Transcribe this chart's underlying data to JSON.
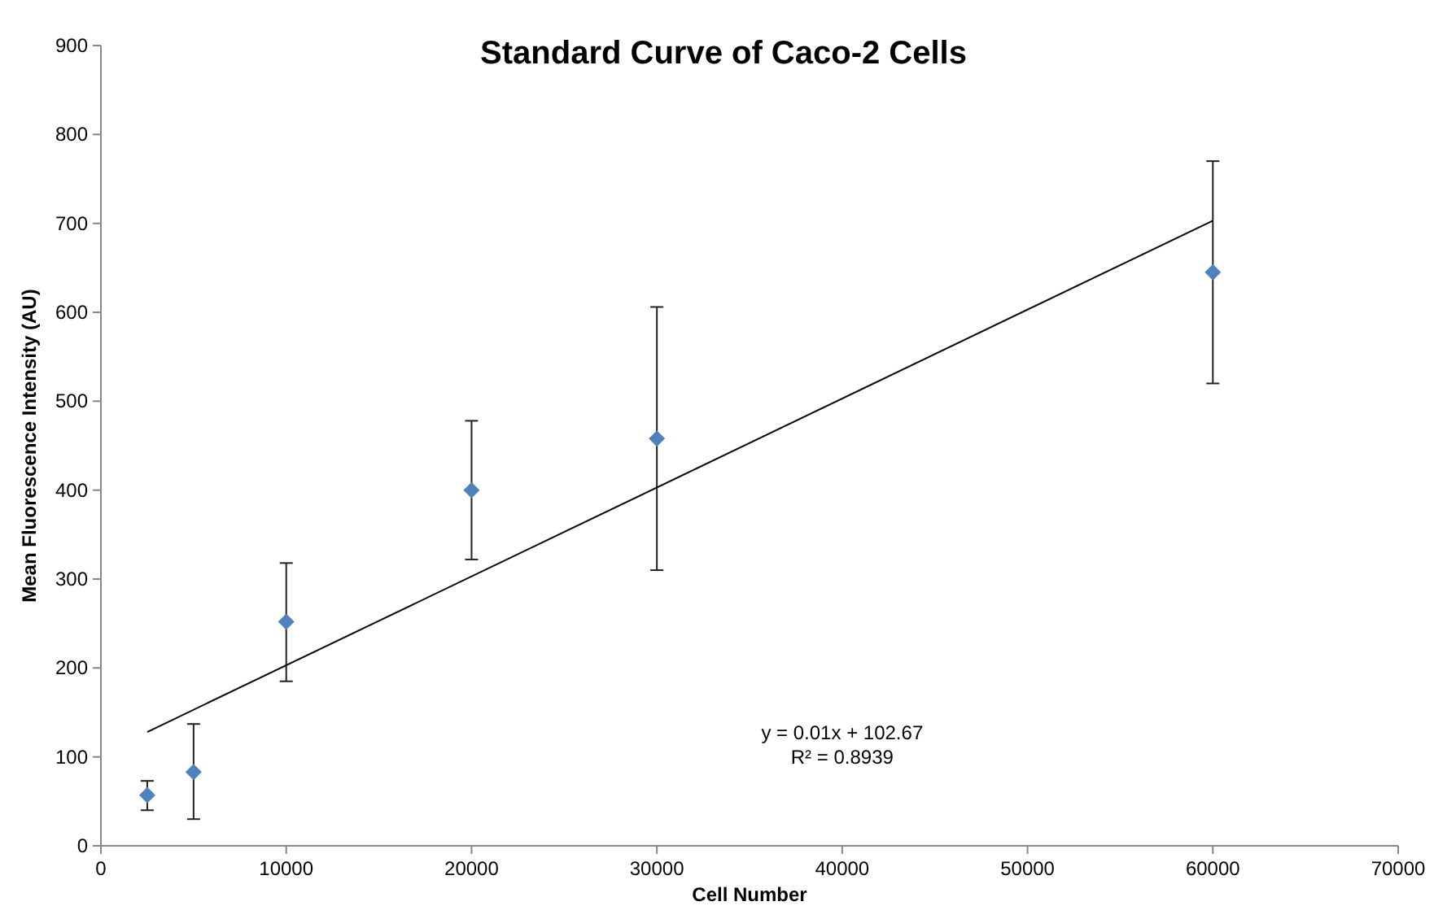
{
  "chart_data": {
    "type": "scatter",
    "title": "Standard Curve of Caco-2 Cells",
    "xlabel": "Cell Number",
    "ylabel": "Mean Fluorescence Intensity (AU)",
    "xlim": [
      0,
      70000
    ],
    "xticks": [
      0,
      10000,
      20000,
      30000,
      40000,
      50000,
      60000,
      70000
    ],
    "ylim": [
      0,
      900
    ],
    "yticks": [
      0,
      100,
      200,
      300,
      400,
      500,
      600,
      700,
      800,
      900
    ],
    "grid": false,
    "series": [
      {
        "color": "#4f81bd",
        "marker": "diamond",
        "x": [
          2500,
          5000,
          10000,
          20000,
          30000,
          60000
        ],
        "values": [
          57,
          83,
          252,
          400,
          458,
          645
        ],
        "errors": [
          [
            40,
            73
          ],
          [
            30,
            137
          ],
          [
            185,
            318
          ],
          [
            322,
            478
          ],
          [
            310,
            606
          ],
          [
            520,
            770
          ]
        ]
      },
      {
        "type": "line",
        "color": "#000000",
        "marker": "none",
        "line_style": "solid",
        "x": [
          2500,
          60000
        ],
        "values": [
          128,
          703
        ]
      }
    ],
    "annotations": [
      "y = 0.01x + 102.67",
      "R² = 0.8939"
    ]
  }
}
